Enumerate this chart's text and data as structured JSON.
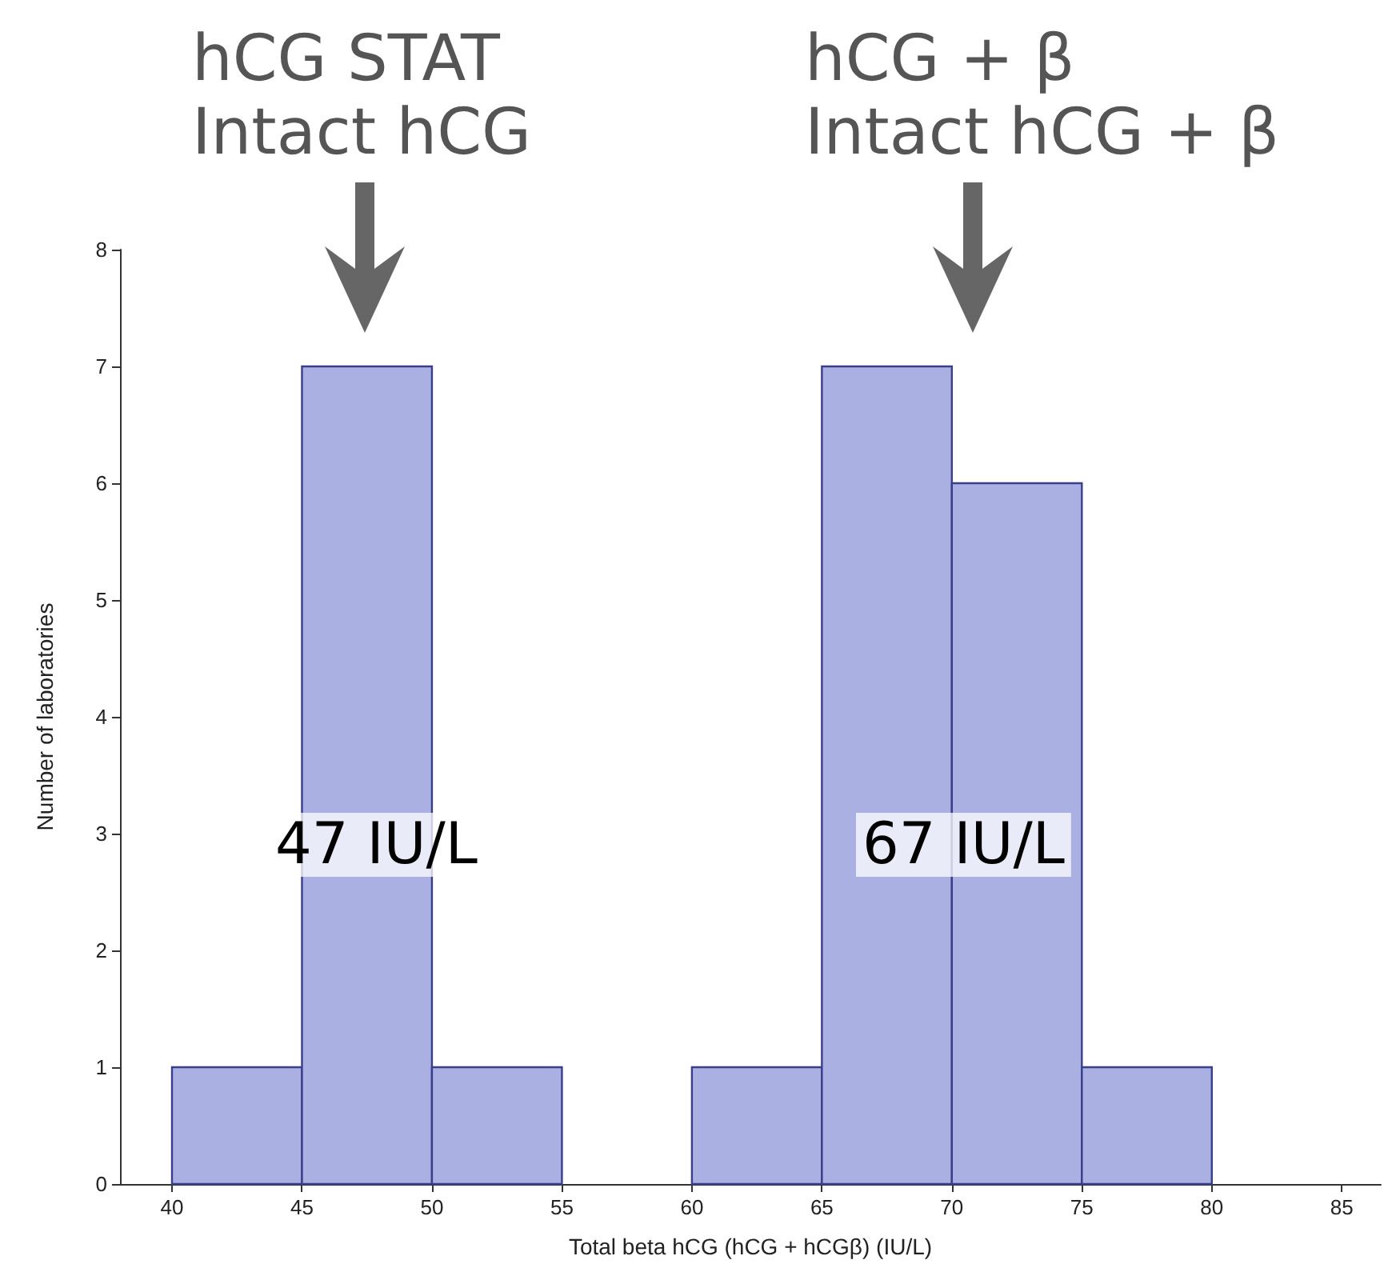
{
  "chart_data": {
    "type": "histogram",
    "xlabel": "Total beta hCG (hCG + hCGβ) (IU/L)",
    "ylabel": "Number of laboratories",
    "bins": [
      40,
      45,
      50,
      55,
      60,
      65,
      70,
      75,
      80
    ],
    "values": [
      1,
      7,
      1,
      0,
      1,
      7,
      6,
      1
    ],
    "color": "#aab0e2",
    "xlim": [
      38,
      86.5
    ],
    "xticks": [
      40,
      45,
      50,
      55,
      60,
      65,
      70,
      75,
      80,
      85
    ],
    "ylim": [
      0,
      8
    ],
    "yticks": [
      0,
      1,
      2,
      3,
      4,
      5,
      6,
      7,
      8
    ],
    "grid": false,
    "annotations": [
      "hCG STAT\nIntact hCG",
      "hCG + β\nIntact hCG + β",
      "47 IU/L",
      "67 IU/L"
    ]
  }
}
